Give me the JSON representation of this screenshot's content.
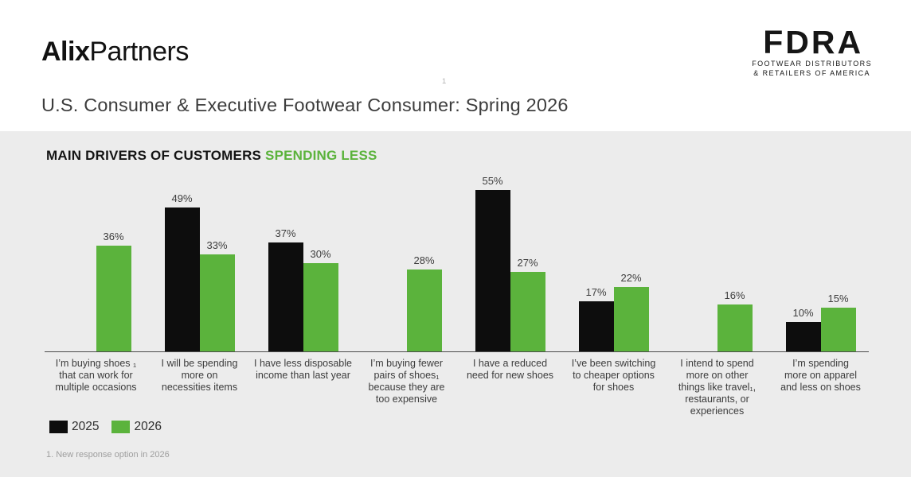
{
  "header": {
    "alix_logo": {
      "bold": "Alix",
      "regular": "Partners"
    },
    "fdra_logo": {
      "acronym": "FDRA",
      "line1": "FOOTWEAR DISTRIBUTORS",
      "line2": "& RETAILERS OF AMERICA"
    },
    "title": "U.S. Consumer & Executive Footwear Consumer: Spring 2026",
    "title_superscript": "1"
  },
  "panel": {
    "heading_main": "MAIN DRIVERS OF CUSTOMERS",
    "heading_accent": "SPENDING LESS",
    "accent_green": "#5bb33c",
    "background": "#ececec",
    "footnote": "1. New response option in 2026"
  },
  "chart_data": {
    "type": "bar",
    "title": "MAIN DRIVERS OF CUSTOMERS SPENDING LESS",
    "value_suffix": "%",
    "ylim": [
      0,
      60
    ],
    "grid": false,
    "legend_position": "bottom-left",
    "categories": [
      {
        "label": "I’m buying shoes ₁ that can work for multiple occasions",
        "lines": [
          "I’m buying shoes ₁",
          "that can work for",
          "multiple occasions"
        ],
        "new_option_footnote": true
      },
      {
        "label": "I will be spending more on necessities items",
        "lines": [
          "I will be spending",
          "more on",
          "necessities items"
        ],
        "new_option_footnote": false
      },
      {
        "label": "I have less disposable income than last year",
        "lines": [
          "I have less disposable",
          "income than last year"
        ],
        "new_option_footnote": false
      },
      {
        "label": "I’m buying fewer pairs of shoes₁ because they are too expensive",
        "lines": [
          "I’m buying fewer",
          "pairs of shoes₁",
          "because they are",
          "too expensive"
        ],
        "new_option_footnote": true
      },
      {
        "label": "I have a reduced need for new shoes",
        "lines": [
          "I have a reduced",
          "need for new shoes"
        ],
        "new_option_footnote": false
      },
      {
        "label": "I’ve been switching to cheaper options for shoes",
        "lines": [
          "I’ve been switching",
          "to cheaper options",
          "for shoes"
        ],
        "new_option_footnote": false
      },
      {
        "label": "I intend to spend more on other things like travel₁, restaurants, or experiences",
        "lines": [
          "I intend to spend",
          "more on other",
          "things like travel₁,",
          "restaurants, or",
          "experiences"
        ],
        "new_option_footnote": true
      },
      {
        "label": "I’m spending more on apparel and less on shoes",
        "lines": [
          "I’m spending",
          "more on apparel",
          "and less on shoes"
        ],
        "new_option_footnote": false
      }
    ],
    "series": [
      {
        "name": "2025",
        "color": "#0d0d0d",
        "values": [
          null,
          49,
          37,
          null,
          55,
          17,
          null,
          10
        ]
      },
      {
        "name": "2026",
        "color": "#5bb33c",
        "values": [
          36,
          33,
          30,
          28,
          27,
          22,
          16,
          15
        ]
      }
    ]
  }
}
